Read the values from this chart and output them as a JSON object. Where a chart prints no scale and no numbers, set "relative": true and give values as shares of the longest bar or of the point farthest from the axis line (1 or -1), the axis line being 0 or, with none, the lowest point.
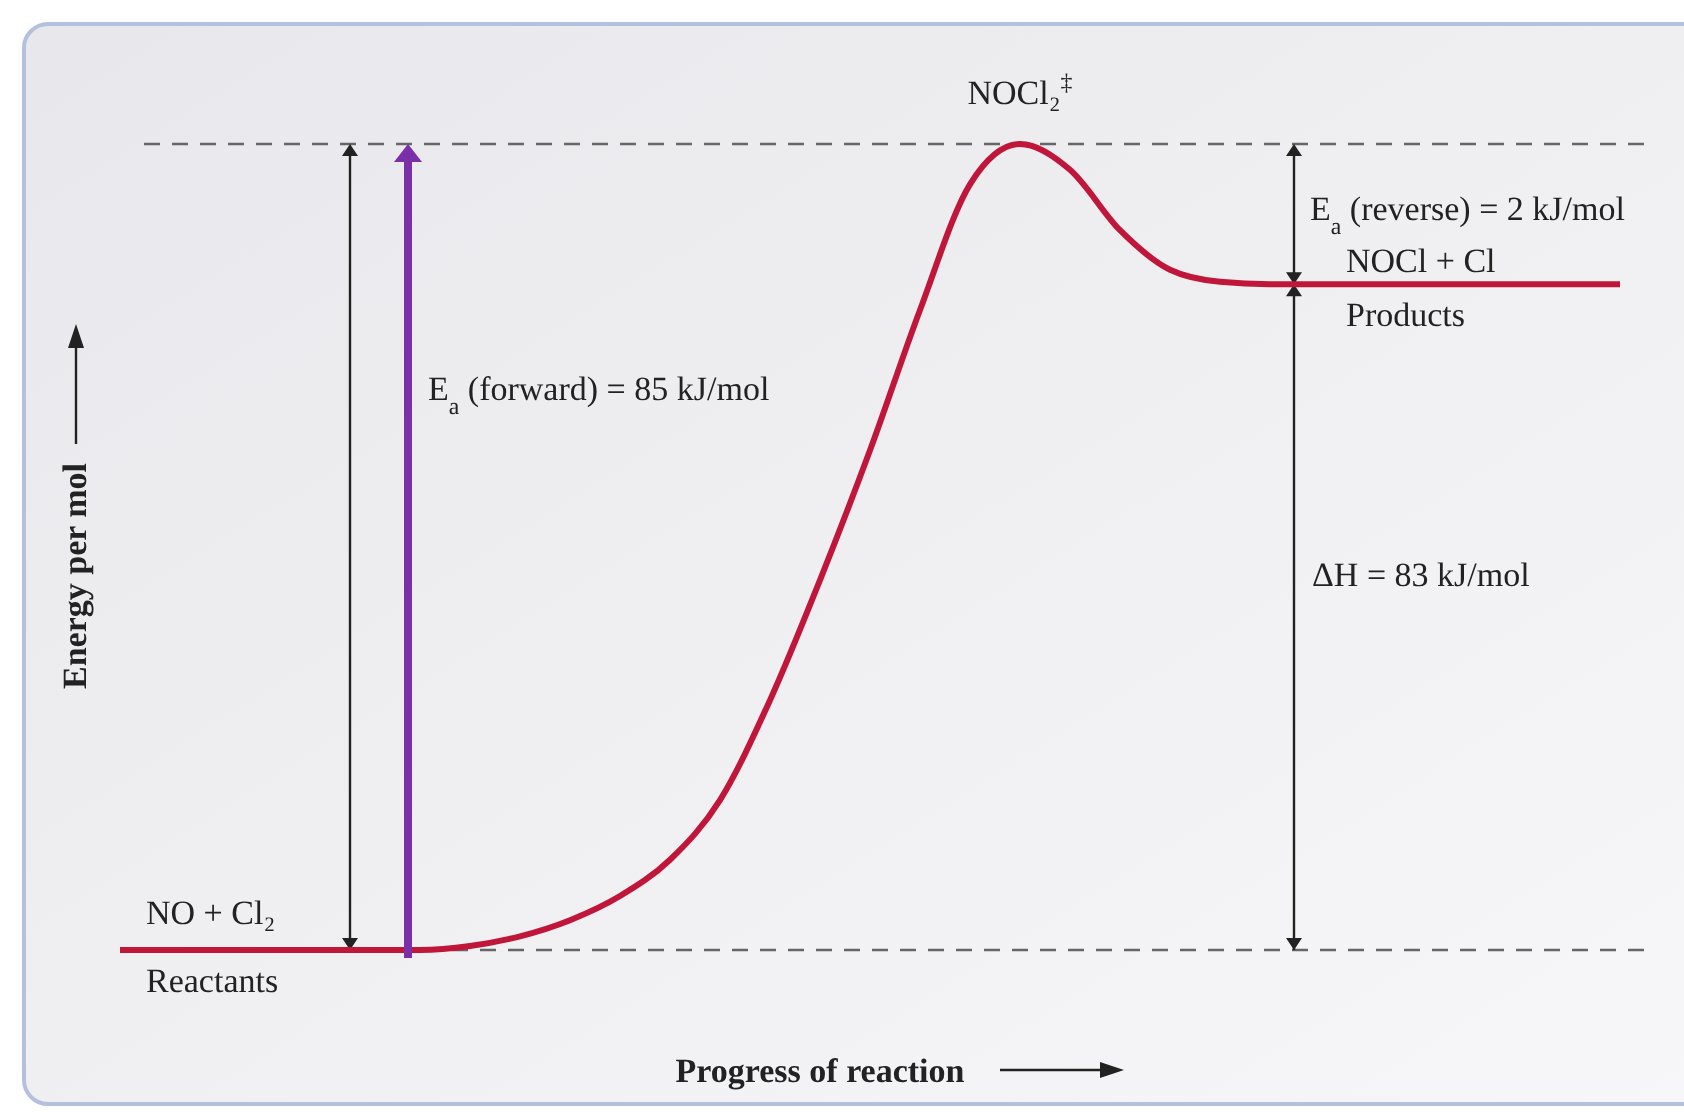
{
  "chart_data": {
    "type": "line",
    "relative": true,
    "xlabel": "Progress of reaction",
    "ylabel": "Energy per mol",
    "categories": [
      null,
      null,
      null,
      null,
      null,
      null,
      null,
      null,
      null,
      null,
      null,
      null,
      null,
      null,
      null,
      null,
      null,
      null,
      null,
      null,
      null,
      null,
      null,
      null,
      null,
      null,
      null,
      null,
      null,
      null,
      null
    ],
    "series": [
      {
        "color": "#c0163a",
        "values": [
          0,
          0,
          0,
          0,
          0,
          0,
          0,
          0.005,
          0.017,
          0.037,
          0.067,
          0.112,
          0.186,
          0.31,
          0.459,
          0.62,
          0.794,
          0.95,
          1,
          0.968,
          0.893,
          0.844,
          0.829,
          0.826,
          0.826,
          0.826,
          0.826,
          0.826,
          0.826,
          0.826,
          0.826
        ]
      }
    ],
    "ref_lines": [
      {
        "axis": "y",
        "value": 1,
        "color": "#666666",
        "line_style": "dashed"
      },
      {
        "axis": "y",
        "value": 0,
        "color": "#666666",
        "line_style": "dashed"
      }
    ],
    "annotations": [
      "NOCl₂$^{‡}$",
      "E$_{a}$ (reverse) = 2 kJ/mol",
      "NOCl + Cl",
      "Products",
      "E$_{a}$ (forward) = 85 kJ/mol",
      "ΔH = 83 kJ/mol",
      "NO + Cl₂",
      "Reactants"
    ],
    "marker": "none",
    "line_style": "solid"
  }
}
